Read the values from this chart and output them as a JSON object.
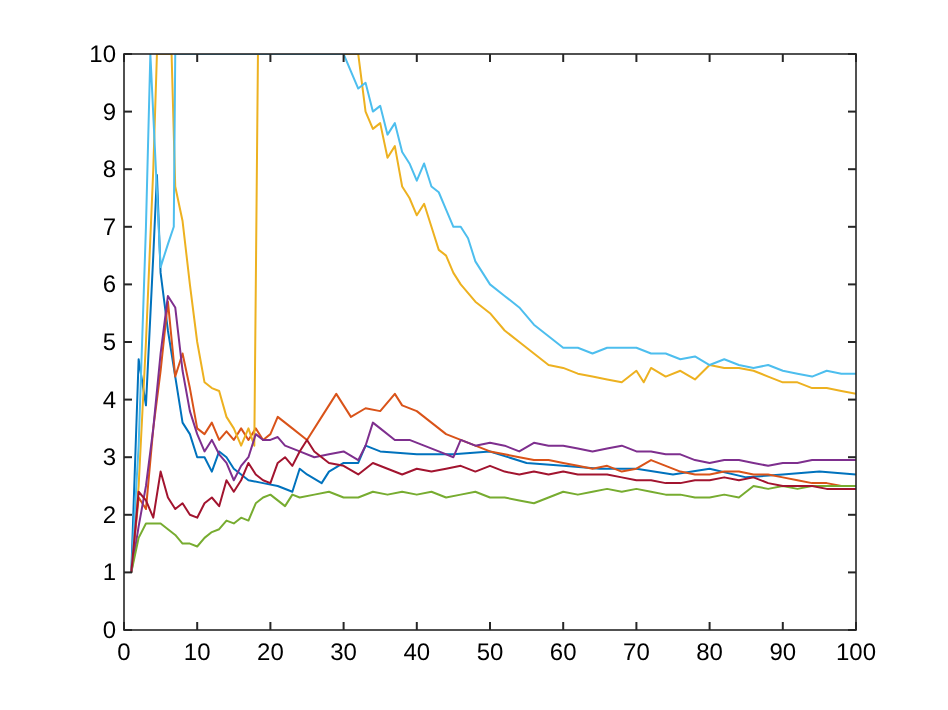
{
  "chart_data": {
    "type": "line",
    "xlim": [
      0,
      100
    ],
    "ylim": [
      0,
      10
    ],
    "xticks": [
      0,
      10,
      20,
      30,
      40,
      50,
      60,
      70,
      80,
      90,
      100
    ],
    "yticks": [
      0,
      1,
      2,
      3,
      4,
      5,
      6,
      7,
      8,
      9,
      10
    ],
    "grid": false,
    "line_style": "solid",
    "marker": "none",
    "series": [
      {
        "color": "#0072bd",
        "x": [
          1,
          2,
          3,
          4,
          4.5,
          5,
          6,
          7,
          8,
          9,
          10,
          11,
          12,
          13,
          14,
          15,
          17,
          19,
          21,
          23,
          24,
          25,
          27,
          28,
          30,
          32,
          33,
          35,
          40,
          45,
          50,
          55,
          60,
          65,
          70,
          75,
          80,
          85,
          90,
          95,
          100
        ],
        "values": [
          1,
          4.7,
          3.9,
          6.5,
          7.9,
          6.2,
          5.2,
          4.4,
          3.6,
          3.4,
          3,
          3,
          2.75,
          3.1,
          3,
          2.8,
          2.6,
          2.55,
          2.5,
          2.4,
          2.8,
          2.7,
          2.55,
          2.75,
          2.9,
          2.9,
          3.2,
          3.1,
          3.05,
          3.05,
          3.1,
          2.9,
          2.85,
          2.8,
          2.8,
          2.7,
          2.8,
          2.65,
          2.7,
          2.75,
          2.7
        ]
      },
      {
        "color": "#d95319",
        "x": [
          1,
          2,
          3,
          4,
          5,
          6,
          7,
          8,
          9,
          10,
          11,
          12,
          13,
          14,
          15,
          16,
          17,
          18,
          19,
          20,
          21,
          22,
          23,
          25,
          27,
          29,
          30,
          31,
          33,
          35,
          37,
          38,
          40,
          42,
          44,
          46,
          48,
          50,
          52,
          54,
          56,
          58,
          60,
          62,
          64,
          66,
          68,
          70,
          72,
          74,
          76,
          78,
          80,
          82,
          84,
          86,
          88,
          90,
          92,
          94,
          96,
          98,
          100
        ],
        "values": [
          1,
          2.3,
          2.1,
          3.5,
          4.5,
          5.7,
          4.4,
          4.8,
          4.2,
          3.5,
          3.4,
          3.6,
          3.3,
          3.45,
          3.3,
          3.5,
          3.3,
          3.5,
          3.3,
          3.4,
          3.7,
          3.6,
          3.5,
          3.3,
          3.7,
          4.1,
          3.9,
          3.7,
          3.85,
          3.8,
          4.1,
          3.9,
          3.8,
          3.6,
          3.4,
          3.3,
          3.2,
          3.1,
          3.05,
          3,
          2.95,
          2.95,
          2.9,
          2.85,
          2.8,
          2.85,
          2.75,
          2.8,
          2.95,
          2.85,
          2.75,
          2.7,
          2.7,
          2.75,
          2.75,
          2.7,
          2.7,
          2.65,
          2.6,
          2.55,
          2.55,
          2.5,
          2.5
        ]
      },
      {
        "color": "#edb120",
        "x": [
          1,
          2,
          3,
          4,
          4.5,
          6.5,
          7,
          8,
          9,
          10,
          11,
          12,
          13,
          14,
          15,
          16,
          17,
          17.8,
          18.3,
          32,
          33,
          34,
          35,
          36,
          37,
          38,
          39,
          40,
          41,
          42,
          43,
          44,
          45,
          46,
          48,
          50,
          52,
          54,
          56,
          58,
          60,
          62,
          64,
          66,
          68,
          69,
          70,
          71,
          72,
          74,
          76,
          78,
          80,
          82,
          84,
          86,
          88,
          90,
          92,
          94,
          96,
          98,
          100
        ],
        "values": [
          1,
          2.5,
          5,
          8,
          10,
          10,
          7.7,
          7.1,
          6,
          5,
          4.3,
          4.2,
          4.15,
          3.7,
          3.5,
          3.2,
          3.5,
          3.2,
          10,
          10,
          9,
          8.7,
          8.8,
          8.2,
          8.4,
          7.7,
          7.5,
          7.2,
          7.4,
          7,
          6.6,
          6.5,
          6.2,
          6,
          5.7,
          5.5,
          5.2,
          5,
          4.8,
          4.6,
          4.55,
          4.45,
          4.4,
          4.35,
          4.3,
          4.4,
          4.5,
          4.3,
          4.55,
          4.4,
          4.5,
          4.35,
          4.6,
          4.55,
          4.55,
          4.5,
          4.4,
          4.3,
          4.3,
          4.2,
          4.2,
          4.15,
          4.1
        ]
      },
      {
        "color": "#7e2f8e",
        "x": [
          1,
          2,
          3,
          4,
          5,
          6,
          7,
          8,
          9,
          10,
          11,
          12,
          13,
          14,
          15,
          16,
          17,
          18,
          19,
          20,
          21,
          22,
          24,
          26,
          28,
          30,
          32,
          33,
          34,
          35,
          37,
          39,
          41,
          43,
          45,
          46,
          48,
          50,
          52,
          54,
          56,
          58,
          60,
          62,
          64,
          66,
          68,
          70,
          72,
          74,
          76,
          78,
          80,
          82,
          84,
          86,
          88,
          90,
          92,
          94,
          96,
          98,
          100
        ],
        "values": [
          1,
          1.8,
          2.5,
          3.5,
          4.8,
          5.8,
          5.6,
          4.5,
          3.8,
          3.4,
          3.1,
          3.3,
          3.05,
          2.9,
          2.6,
          2.85,
          3,
          3.4,
          3.3,
          3.3,
          3.35,
          3.2,
          3.1,
          3,
          3.05,
          3.1,
          2.95,
          3.2,
          3.6,
          3.5,
          3.3,
          3.3,
          3.2,
          3.1,
          3,
          3.3,
          3.2,
          3.25,
          3.2,
          3.1,
          3.25,
          3.2,
          3.2,
          3.15,
          3.1,
          3.15,
          3.2,
          3.1,
          3.1,
          3.05,
          3.05,
          2.95,
          2.9,
          2.95,
          2.95,
          2.9,
          2.85,
          2.9,
          2.9,
          2.95,
          2.95,
          2.95,
          2.95
        ]
      },
      {
        "color": "#77ac30",
        "x": [
          1,
          2,
          3,
          4,
          5,
          6,
          7,
          8,
          9,
          10,
          11,
          12,
          13,
          14,
          15,
          16,
          17,
          18,
          19,
          20,
          21,
          22,
          23,
          24,
          26,
          28,
          30,
          32,
          34,
          36,
          38,
          40,
          42,
          44,
          46,
          48,
          50,
          52,
          54,
          56,
          58,
          60,
          62,
          64,
          66,
          68,
          70,
          72,
          74,
          76,
          78,
          80,
          82,
          84,
          86,
          88,
          90,
          92,
          94,
          96,
          98,
          100
        ],
        "values": [
          1,
          1.6,
          1.85,
          1.85,
          1.85,
          1.75,
          1.65,
          1.5,
          1.5,
          1.45,
          1.6,
          1.7,
          1.75,
          1.9,
          1.85,
          1.95,
          1.9,
          2.2,
          2.3,
          2.35,
          2.25,
          2.15,
          2.35,
          2.3,
          2.35,
          2.4,
          2.3,
          2.3,
          2.4,
          2.35,
          2.4,
          2.35,
          2.4,
          2.3,
          2.35,
          2.4,
          2.3,
          2.3,
          2.25,
          2.2,
          2.3,
          2.4,
          2.35,
          2.4,
          2.45,
          2.4,
          2.45,
          2.4,
          2.35,
          2.35,
          2.3,
          2.3,
          2.35,
          2.3,
          2.5,
          2.45,
          2.5,
          2.45,
          2.5,
          2.5,
          2.5,
          2.5
        ]
      },
      {
        "color": "#4dbeee",
        "x": [
          1,
          2,
          3,
          3.6,
          5,
          6,
          6.8,
          7,
          30,
          31,
          32,
          33,
          34,
          35,
          36,
          37,
          38,
          39,
          40,
          41,
          42,
          43,
          44,
          45,
          46,
          47,
          48,
          49,
          50,
          52,
          54,
          56,
          58,
          60,
          62,
          64,
          66,
          68,
          70,
          72,
          74,
          76,
          78,
          80,
          82,
          84,
          86,
          88,
          90,
          92,
          94,
          96,
          98,
          100
        ],
        "values": [
          1,
          3.2,
          7,
          10,
          6.3,
          6.7,
          7,
          10,
          10,
          9.7,
          9.4,
          9.5,
          9,
          9.1,
          8.6,
          8.8,
          8.3,
          8.1,
          7.8,
          8.1,
          7.7,
          7.6,
          7.3,
          7,
          7,
          6.8,
          6.4,
          6.2,
          6,
          5.8,
          5.6,
          5.3,
          5.1,
          4.9,
          4.9,
          4.8,
          4.9,
          4.9,
          4.9,
          4.8,
          4.8,
          4.7,
          4.75,
          4.6,
          4.7,
          4.6,
          4.55,
          4.6,
          4.5,
          4.45,
          4.4,
          4.5,
          4.45,
          4.45
        ]
      },
      {
        "color": "#a2142f",
        "x": [
          1,
          2,
          3,
          4,
          5,
          6,
          7,
          8,
          9,
          10,
          11,
          12,
          13,
          14,
          15,
          16,
          17,
          18,
          19,
          20,
          21,
          22,
          23,
          24,
          25,
          26,
          27,
          28,
          30,
          32,
          34,
          36,
          38,
          40,
          42,
          44,
          46,
          48,
          50,
          52,
          54,
          56,
          58,
          60,
          62,
          64,
          66,
          68,
          70,
          72,
          74,
          76,
          78,
          80,
          82,
          84,
          86,
          88,
          90,
          92,
          94,
          96,
          98,
          100
        ],
        "values": [
          1,
          2.4,
          2.25,
          1.95,
          2.75,
          2.3,
          2.1,
          2.2,
          2,
          1.95,
          2.2,
          2.3,
          2.15,
          2.6,
          2.4,
          2.6,
          2.9,
          2.7,
          2.6,
          2.55,
          2.9,
          3,
          2.85,
          3.1,
          3.3,
          3.1,
          3,
          2.9,
          2.85,
          2.7,
          2.9,
          2.8,
          2.7,
          2.8,
          2.75,
          2.8,
          2.85,
          2.75,
          2.85,
          2.75,
          2.7,
          2.75,
          2.7,
          2.75,
          2.7,
          2.7,
          2.7,
          2.65,
          2.6,
          2.6,
          2.55,
          2.55,
          2.6,
          2.6,
          2.65,
          2.6,
          2.65,
          2.55,
          2.5,
          2.5,
          2.5,
          2.45,
          2.45,
          2.45
        ]
      }
    ]
  }
}
